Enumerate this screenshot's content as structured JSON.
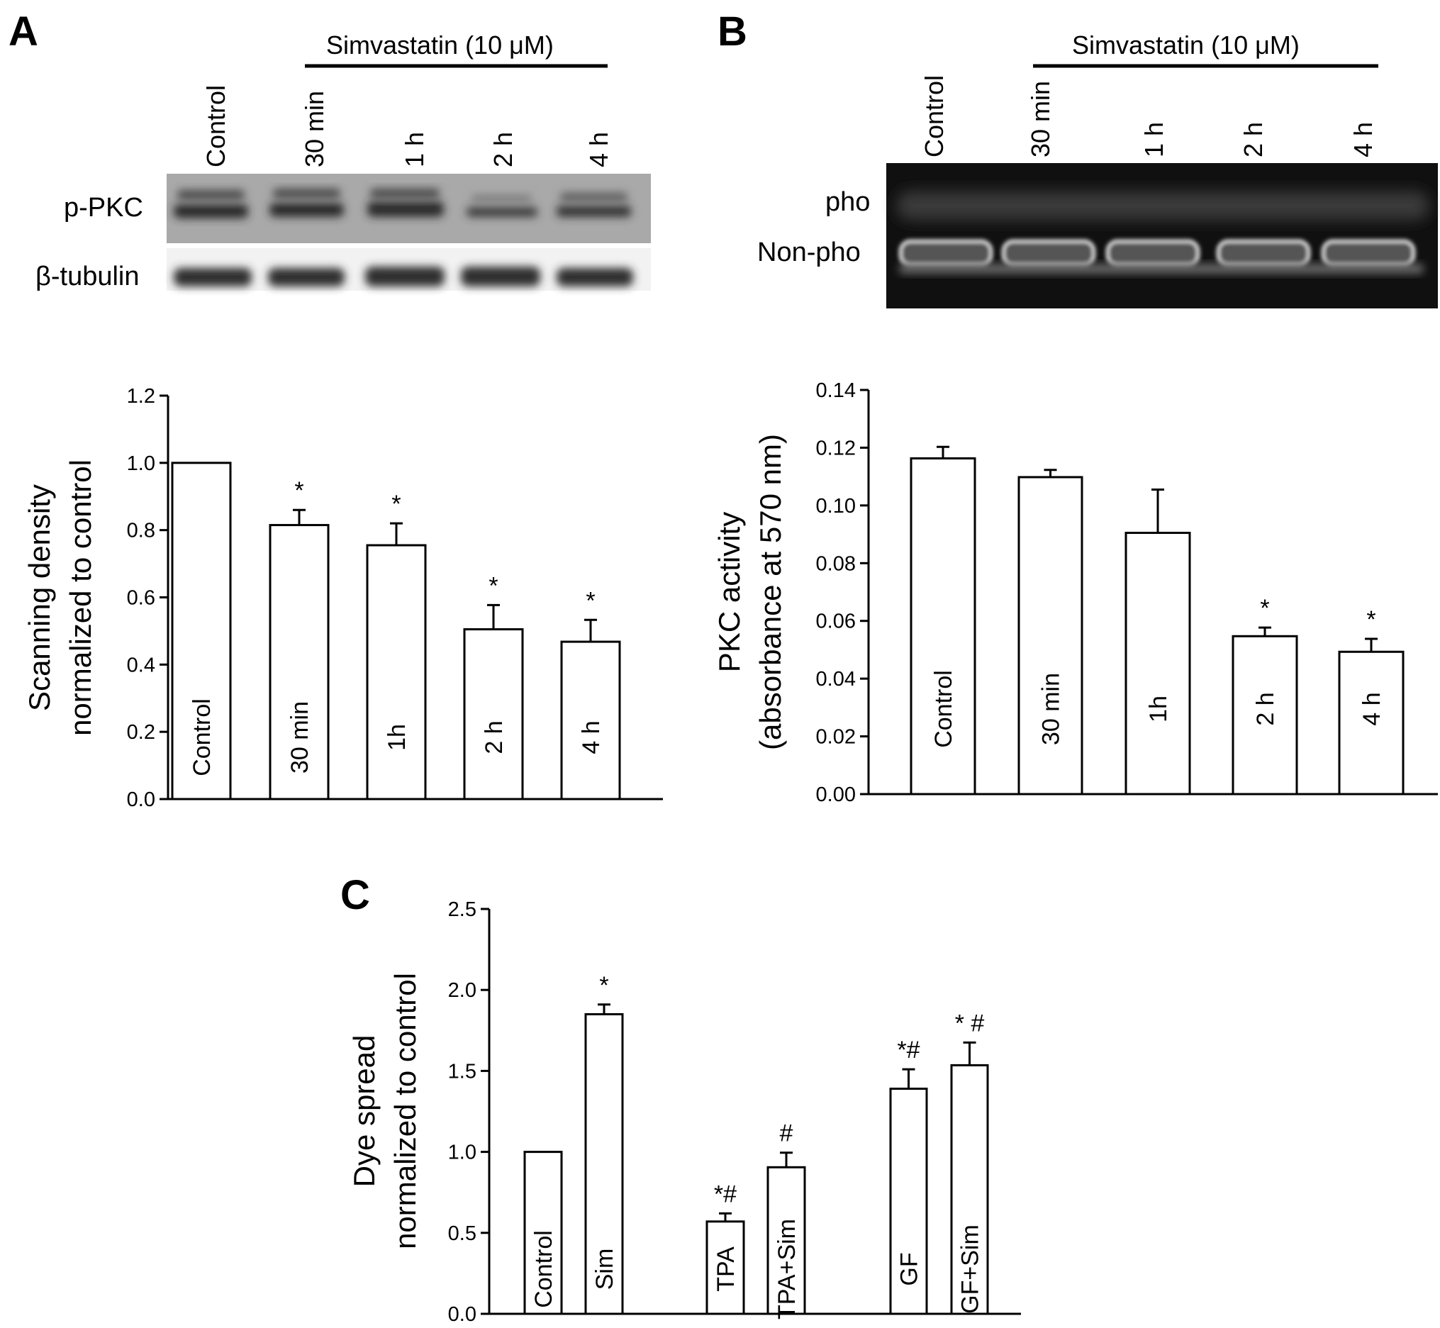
{
  "panels": {
    "A": {
      "letter": "A",
      "treatment_label": "Simvastatin (10 μM)",
      "lanes": [
        "Control",
        "30 min",
        "1 h",
        "2 h",
        "4 h"
      ],
      "blot_rows": [
        "p-PKC",
        "β-tubulin"
      ]
    },
    "B": {
      "letter": "B",
      "treatment_label": "Simvastatin (10 μM)",
      "lanes": [
        "Control",
        "30 min",
        "1 h",
        "2 h",
        "4 h"
      ],
      "blot_rows": [
        "pho",
        "Non-pho"
      ]
    },
    "C": {
      "letter": "C"
    }
  },
  "chart_data": [
    {
      "panel": "A",
      "type": "bar",
      "categories": [
        "Control",
        "30 min",
        "1h",
        "2 h",
        "4 h"
      ],
      "values": [
        1.0,
        0.815,
        0.755,
        0.505,
        0.468
      ],
      "errors": [
        0,
        0.045,
        0.065,
        0.072,
        0.065
      ],
      "significance": [
        "",
        "*",
        "*",
        "*",
        "*"
      ],
      "ylabel": [
        "Scanning density",
        "normalized to control"
      ],
      "ylim": [
        0,
        1.2
      ],
      "yticks": [
        "0.0",
        "0.2",
        "0.4",
        "0.6",
        "0.8",
        "1.0",
        "1.2"
      ],
      "bar_color": "#ffffff",
      "edge_color": "#000000"
    },
    {
      "panel": "B",
      "type": "bar",
      "categories": [
        "Control",
        "30 min",
        "1h",
        "2 h",
        "4 h"
      ],
      "values": [
        0.1163,
        0.1098,
        0.0905,
        0.0547,
        0.0493
      ],
      "errors": [
        0.004,
        0.0025,
        0.015,
        0.003,
        0.0045
      ],
      "significance": [
        "",
        "",
        "",
        "*",
        "*"
      ],
      "ylabel": [
        "PKC activity",
        "(absorbance at 570 nm)"
      ],
      "ylim": [
        0,
        0.14
      ],
      "yticks": [
        "0.00",
        "0.02",
        "0.04",
        "0.06",
        "0.08",
        "0.10",
        "0.12",
        "0.14"
      ],
      "bar_color": "#ffffff",
      "edge_color": "#000000"
    },
    {
      "panel": "C",
      "type": "bar",
      "categories": [
        "Control",
        "Sim",
        "TPA",
        "TPA+Sim",
        "GF",
        "GF+Sim"
      ],
      "values": [
        1.0,
        1.85,
        0.57,
        0.905,
        1.39,
        1.535
      ],
      "errors": [
        0,
        0.06,
        0.05,
        0.09,
        0.12,
        0.14
      ],
      "significance": [
        "",
        "*",
        "*#",
        "#",
        "*#",
        "* #"
      ],
      "ylabel": [
        "Dye spread",
        "normalized to control"
      ],
      "ylim": [
        0,
        2.5
      ],
      "yticks": [
        "0.0",
        "0.5",
        "1.0",
        "1.5",
        "2.0",
        "2.5"
      ],
      "bar_color": "#ffffff",
      "edge_color": "#000000"
    }
  ]
}
